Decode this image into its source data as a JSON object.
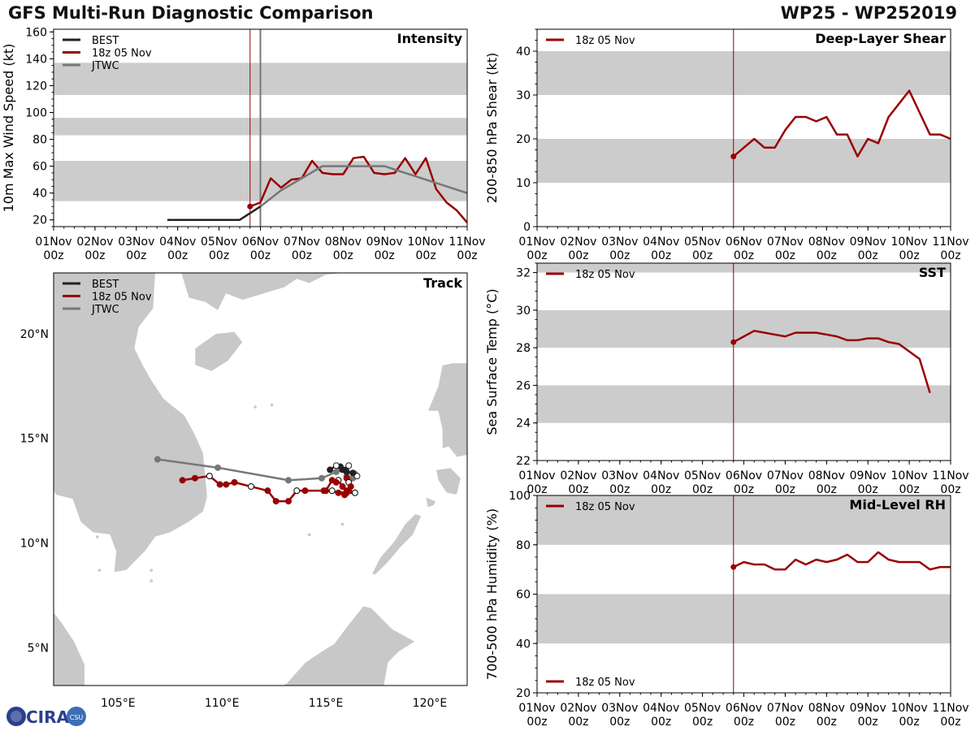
{
  "header": {
    "title_left": "GFS Multi-Run Diagnostic Comparison",
    "title_right": "WP25 - WP252019"
  },
  "logo": {
    "text": "CIRA",
    "subtext": "CSU"
  },
  "colors": {
    "best": "#222222",
    "gfs": "#990000",
    "jtwc": "#777777",
    "band": "#cccccc",
    "land": "#c8c8c8",
    "init_line": "#990000",
    "jtwc_line": "#777777"
  },
  "time_axis": {
    "ticks": [
      [
        "01Nov",
        "00z"
      ],
      [
        "02Nov",
        "00z"
      ],
      [
        "03Nov",
        "00z"
      ],
      [
        "04Nov",
        "00z"
      ],
      [
        "05Nov",
        "00z"
      ],
      [
        "06Nov",
        "00z"
      ],
      [
        "07Nov",
        "00z"
      ],
      [
        "08Nov",
        "00z"
      ],
      [
        "09Nov",
        "00z"
      ],
      [
        "10Nov",
        "00z"
      ],
      [
        "11Nov",
        "00z"
      ]
    ],
    "init_day": 4.75
  },
  "chart_data": [
    {
      "id": "intensity",
      "type": "line",
      "title": "Intensity",
      "ylabel": "10m Max Wind Speed (kt)",
      "xlim": [
        0,
        10
      ],
      "ylim": [
        15,
        162
      ],
      "yticks": [
        20,
        40,
        60,
        80,
        100,
        120,
        140,
        160
      ],
      "bands": [
        [
          34,
          64
        ],
        [
          83,
          96
        ],
        [
          113,
          137
        ]
      ],
      "vlines": [
        {
          "x": 4.75,
          "color": "gfs"
        },
        {
          "x": 5.0,
          "color": "jtwc"
        }
      ],
      "legend": [
        "BEST",
        "18z 05 Nov",
        "JTWC"
      ],
      "series": [
        {
          "name": "BEST",
          "color": "best",
          "x": [
            2.75,
            4.5,
            5.0
          ],
          "y": [
            20,
            20,
            30
          ]
        },
        {
          "name": "18z 05 Nov",
          "color": "gfs",
          "marker_first": true,
          "x": [
            4.75,
            5.0,
            5.25,
            5.5,
            5.75,
            6.0,
            6.25,
            6.5,
            6.75,
            7.0,
            7.25,
            7.5,
            7.75,
            8.0,
            8.25,
            8.5,
            8.75,
            9.0,
            9.25,
            9.5,
            9.75,
            10.0
          ],
          "y": [
            30,
            33,
            51,
            44,
            50,
            51,
            64,
            55,
            54,
            54,
            66,
            67,
            55,
            54,
            55,
            66,
            54,
            66,
            43,
            33,
            27,
            18
          ]
        },
        {
          "name": "JTWC",
          "color": "jtwc",
          "x": [
            5.0,
            5.5,
            6.0,
            6.5,
            7.0,
            7.5,
            8.0,
            8.5,
            9.0,
            9.5,
            10.0
          ],
          "y": [
            30,
            42,
            51,
            60,
            60,
            60,
            60,
            55,
            50,
            45,
            40
          ]
        }
      ]
    },
    {
      "id": "shear",
      "type": "line",
      "title": "Deep-Layer Shear",
      "ylabel": "200-850 hPa Shear (kt)",
      "xlim": [
        0,
        10
      ],
      "ylim": [
        0,
        45
      ],
      "yticks": [
        0,
        10,
        20,
        30,
        40
      ],
      "bands": [
        [
          10,
          20
        ],
        [
          30,
          40
        ]
      ],
      "vlines": [
        {
          "x": 4.75,
          "color": "gfs"
        }
      ],
      "legend": [
        "18z 05 Nov"
      ],
      "series": [
        {
          "name": "18z 05 Nov",
          "color": "gfs",
          "marker_first": true,
          "x": [
            4.75,
            5.0,
            5.25,
            5.5,
            5.75,
            6.0,
            6.25,
            6.5,
            6.75,
            7.0,
            7.25,
            7.5,
            7.75,
            8.0,
            8.25,
            8.5,
            8.75,
            9.0,
            9.25,
            9.5,
            9.75,
            10.0
          ],
          "y": [
            16,
            18,
            20,
            18,
            18,
            22,
            25,
            25,
            24,
            25,
            21,
            21,
            16,
            20,
            19,
            25,
            28,
            31,
            26,
            21,
            21,
            20
          ]
        }
      ]
    },
    {
      "id": "sst",
      "type": "line",
      "title": "SST",
      "ylabel": "Sea Surface Temp (°C)",
      "xlim": [
        0,
        10
      ],
      "ylim": [
        22,
        32.5
      ],
      "yticks": [
        22,
        24,
        26,
        28,
        30,
        32
      ],
      "bands": [
        [
          24,
          26
        ],
        [
          28,
          30
        ],
        [
          32,
          34
        ]
      ],
      "vlines": [
        {
          "x": 4.75,
          "color": "gfs"
        }
      ],
      "legend": [
        "18z 05 Nov"
      ],
      "series": [
        {
          "name": "18z 05 Nov",
          "color": "gfs",
          "marker_first": true,
          "x": [
            4.75,
            5.0,
            5.25,
            5.5,
            5.75,
            6.0,
            6.25,
            6.5,
            6.75,
            7.0,
            7.25,
            7.5,
            7.75,
            8.0,
            8.25,
            8.5,
            8.75,
            9.0,
            9.25,
            9.5
          ],
          "y": [
            28.3,
            28.6,
            28.9,
            28.8,
            28.7,
            28.6,
            28.8,
            28.8,
            28.8,
            28.7,
            28.6,
            28.4,
            28.4,
            28.5,
            28.5,
            28.3,
            28.2,
            27.8,
            27.4,
            25.6
          ]
        }
      ]
    },
    {
      "id": "rh",
      "type": "line",
      "title": "Mid-Level RH",
      "ylabel": "700-500 hPa Humidity (%)",
      "xlim": [
        0,
        10
      ],
      "ylim": [
        20,
        100
      ],
      "yticks": [
        20,
        40,
        60,
        80,
        100
      ],
      "bands": [
        [
          40,
          60
        ],
        [
          80,
          100
        ]
      ],
      "vlines": [
        {
          "x": 4.75,
          "color": "gfs"
        }
      ],
      "legend": [
        "18z 05 Nov"
      ],
      "series": [
        {
          "name": "18z 05 Nov",
          "color": "gfs",
          "marker_first": true,
          "x": [
            4.75,
            5.0,
            5.25,
            5.5,
            5.75,
            6.0,
            6.25,
            6.5,
            6.75,
            7.0,
            7.25,
            7.5,
            7.75,
            8.0,
            8.25,
            8.5,
            8.75,
            9.0,
            9.25,
            9.5,
            9.75,
            10.0
          ],
          "y": [
            71,
            73,
            72,
            72,
            70,
            70,
            74,
            72,
            74,
            73,
            74,
            76,
            73,
            73,
            77,
            74,
            73,
            73,
            73,
            70,
            71,
            71
          ]
        }
      ]
    },
    {
      "id": "track",
      "type": "scatter",
      "title": "Track",
      "xlim": [
        101.9,
        121.8
      ],
      "ylim": [
        3.2,
        22.9
      ],
      "xticks": [
        105,
        110,
        115,
        120
      ],
      "xticklabels": [
        "105°E",
        "110°E",
        "115°E",
        "120°E"
      ],
      "yticks": [
        5,
        10,
        15,
        20
      ],
      "yticklabels": [
        "5°N",
        "10°N",
        "15°N",
        "20°N"
      ],
      "legend": [
        "BEST",
        "18z 05 Nov",
        "JTWC"
      ],
      "series": [
        {
          "name": "BEST",
          "color": "best",
          "lon": [
            116.5,
            116.3,
            116.0,
            116.1,
            115.8,
            115.7,
            115.5,
            115.2
          ],
          "lat": [
            13.2,
            13.35,
            13.4,
            13.7,
            13.5,
            13.65,
            13.7,
            13.5
          ]
        },
        {
          "name": "JTWC",
          "color": "jtwc",
          "lon": [
            116.4,
            116.3,
            116.0,
            115.9,
            115.5,
            114.8,
            113.2,
            109.8,
            106.9
          ],
          "lat": [
            13.3,
            13.1,
            13.2,
            13.5,
            13.4,
            13.1,
            13.0,
            13.6,
            14.0
          ]
        },
        {
          "name": "18z 05 Nov",
          "color": "gfs",
          "lon": [
            116.0,
            116.1,
            116.2,
            116.0,
            115.8,
            115.6,
            115.5,
            115.3,
            115.0,
            115.3,
            115.6,
            115.9,
            116.1,
            116.4,
            116.0,
            114.9,
            114.0,
            113.6,
            113.2,
            112.6,
            112.2,
            111.4,
            110.6,
            110.2,
            109.9,
            109.4,
            108.7,
            108.1
          ],
          "lat": [
            13.1,
            12.9,
            12.7,
            12.5,
            12.7,
            13.0,
            12.9,
            13.0,
            12.5,
            12.5,
            12.4,
            12.3,
            12.5,
            12.4,
            12.4,
            12.5,
            12.5,
            12.5,
            12.0,
            12.0,
            12.5,
            12.7,
            12.9,
            12.8,
            12.8,
            13.2,
            13.1,
            13.0
          ]
        }
      ]
    }
  ]
}
